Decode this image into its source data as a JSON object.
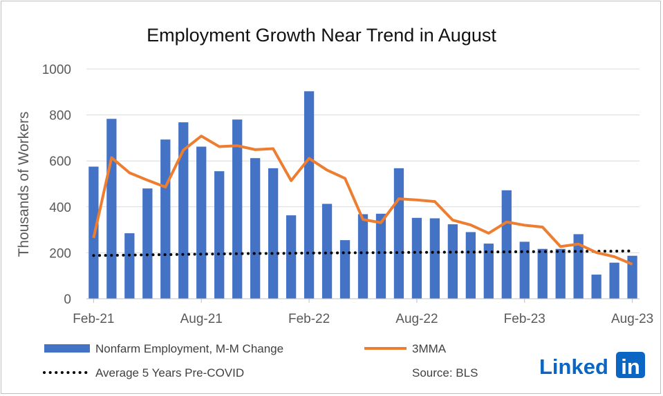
{
  "chart_data": {
    "type": "bar",
    "title": "Employment Growth Near Trend in August",
    "ylabel": "Thousands of Workers",
    "xlabel": "",
    "ylim": [
      0,
      1000
    ],
    "yticks": [
      0,
      200,
      400,
      600,
      800,
      1000
    ],
    "grid": true,
    "legend_position": "bottom",
    "categories": [
      "Feb-21",
      "Mar-21",
      "Apr-21",
      "May-21",
      "Jun-21",
      "Jul-21",
      "Aug-21",
      "Sep-21",
      "Oct-21",
      "Nov-21",
      "Dec-21",
      "Jan-22",
      "Feb-22",
      "Mar-22",
      "Apr-22",
      "May-22",
      "Jun-22",
      "Jul-22",
      "Aug-22",
      "Sep-22",
      "Oct-22",
      "Nov-22",
      "Dec-22",
      "Jan-23",
      "Feb-23",
      "Mar-23",
      "Apr-23",
      "May-23",
      "Jun-23",
      "Jul-23",
      "Aug-23"
    ],
    "x_tick_labels": [
      "Feb-21",
      "Aug-21",
      "Feb-22",
      "Aug-22",
      "Feb-23",
      "Aug-23"
    ],
    "series": [
      {
        "name": "Nonfarm Employment, M-M Change",
        "type": "bar",
        "color": "#4472c4",
        "values": [
          575,
          783,
          285,
          480,
          693,
          768,
          662,
          555,
          780,
          612,
          568,
          363,
          903,
          413,
          255,
          368,
          370,
          568,
          352,
          350,
          324,
          290,
          240,
          472,
          248,
          217,
          217,
          281,
          105,
          157,
          187
        ]
      },
      {
        "name": "3MMA",
        "type": "line",
        "color": "#ed7d31",
        "values": [
          265,
          614,
          548,
          516,
          486,
          647,
          708,
          662,
          666,
          649,
          653,
          514,
          611,
          560,
          524,
          345,
          331,
          435,
          430,
          423,
          342,
          321,
          285,
          334,
          320,
          312,
          227,
          238,
          201,
          183,
          150
        ]
      },
      {
        "name": "Average 5 Years Pre-COVID",
        "type": "line",
        "style": "dotted",
        "color": "#000000",
        "values": [
          188,
          189,
          190,
          191,
          192,
          193,
          194,
          195,
          196,
          197,
          197,
          198,
          199,
          199,
          200,
          200,
          201,
          201,
          202,
          202,
          203,
          203,
          204,
          204,
          205,
          205,
          206,
          206,
          207,
          207,
          208
        ]
      }
    ]
  },
  "source_text": "Source: BLS",
  "logo": {
    "text_part": "Linked",
    "box_part": "in",
    "color": "#0a66c2"
  }
}
